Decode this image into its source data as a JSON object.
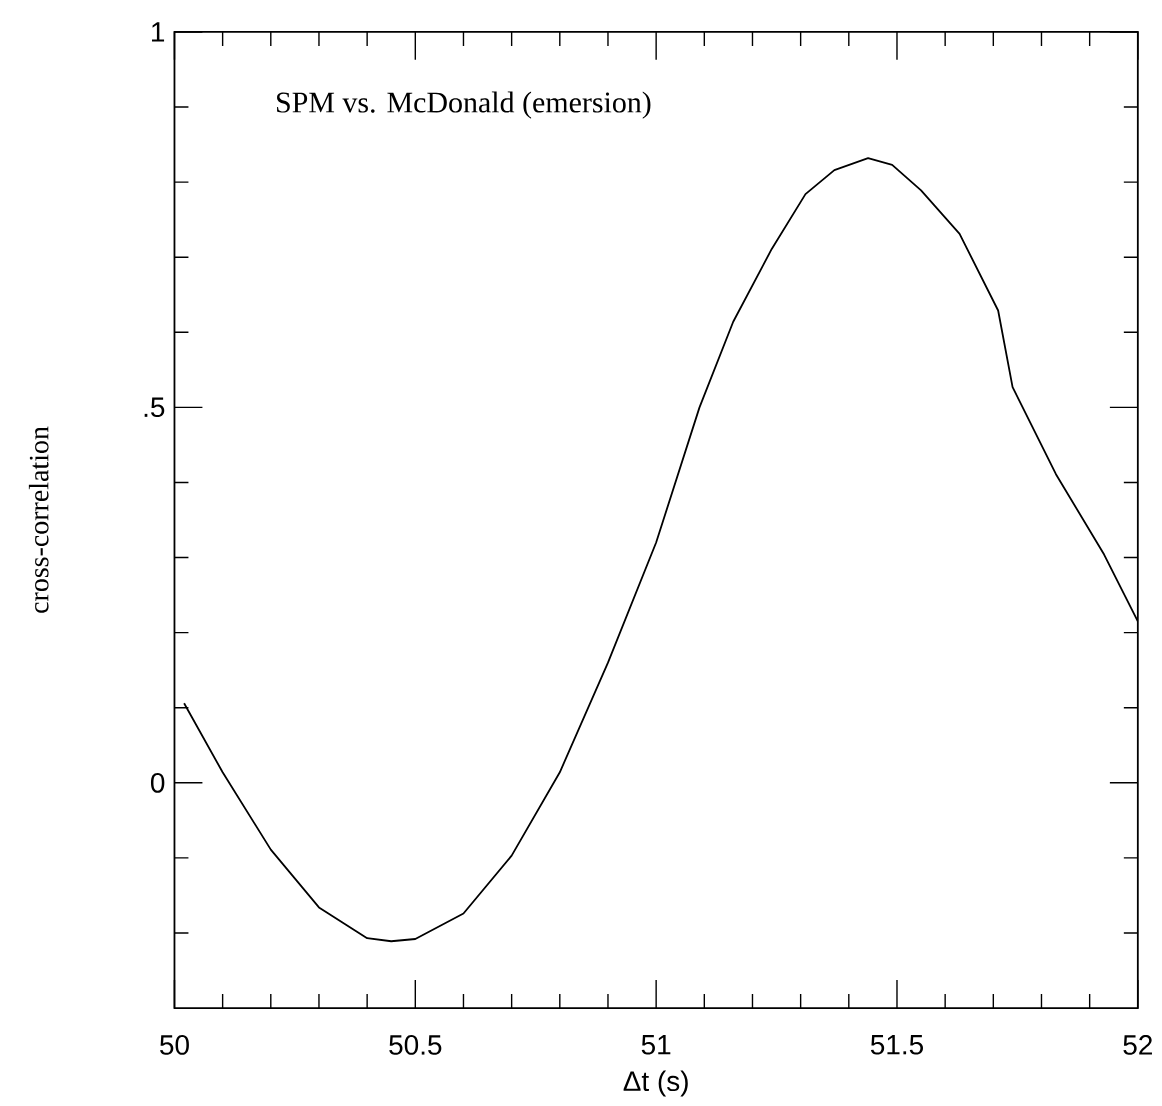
{
  "chart_data": {
    "type": "line",
    "title": "SPM vs. McDonald (emersion)",
    "xlabel": "Δt (s)",
    "ylabel": "cross-correlation",
    "xlim": [
      50,
      52
    ],
    "xticks": [
      50,
      50.5,
      51,
      51.5,
      52,
      {
        "value": 50.1,
        "label": null
      },
      {
        "value": 50.2,
        "label": null
      },
      {
        "value": 50.3,
        "label": null
      },
      {
        "value": 50.4,
        "label": null
      },
      {
        "value": 50.6,
        "label": null
      },
      {
        "value": 50.7,
        "label": null
      },
      {
        "value": 50.8,
        "label": null
      },
      {
        "value": 50.9,
        "label": null
      },
      {
        "value": 51.1,
        "label": null
      },
      {
        "value": 51.2,
        "label": null
      },
      {
        "value": 51.3,
        "label": null
      },
      {
        "value": 51.4,
        "label": null
      },
      {
        "value": 51.6,
        "label": null
      },
      {
        "value": 51.7,
        "label": null
      },
      {
        "value": 51.8,
        "label": null
      },
      {
        "value": 51.9,
        "label": null
      }
    ],
    "ylim": [
      -0.3,
      1
    ],
    "yticks": [
      0,
      {
        "value": 0.5,
        "label": ".5"
      },
      1,
      {
        "value": -0.2,
        "label": null
      },
      {
        "value": -0.1,
        "label": null
      },
      {
        "value": 0.1,
        "label": null
      },
      {
        "value": 0.2,
        "label": null
      },
      {
        "value": 0.3,
        "label": null
      },
      {
        "value": 0.4,
        "label": null
      },
      {
        "value": 0.6,
        "label": null
      },
      {
        "value": 0.7,
        "label": null
      },
      {
        "value": 0.8,
        "label": null
      },
      {
        "value": 0.9,
        "label": null
      }
    ],
    "color": "#000000",
    "line_style": "solid",
    "marker": "none",
    "x": [
      50.02,
      50.1,
      50.2,
      50.3,
      50.4,
      50.45,
      50.5,
      50.6,
      50.7,
      50.8,
      50.9,
      51.0,
      51.09,
      51.16,
      51.24,
      51.31,
      51.37,
      51.44,
      51.49,
      51.55,
      51.63,
      51.71,
      51.74,
      51.83,
      51.93,
      52.0
    ],
    "values": [
      0.106,
      0.014,
      -0.089,
      -0.166,
      -0.207,
      -0.211,
      -0.208,
      -0.174,
      -0.097,
      0.014,
      0.16,
      0.32,
      0.5,
      0.614,
      0.711,
      0.784,
      0.816,
      0.832,
      0.823,
      0.789,
      0.731,
      0.629,
      0.527,
      0.411,
      0.304,
      0.215
    ]
  }
}
